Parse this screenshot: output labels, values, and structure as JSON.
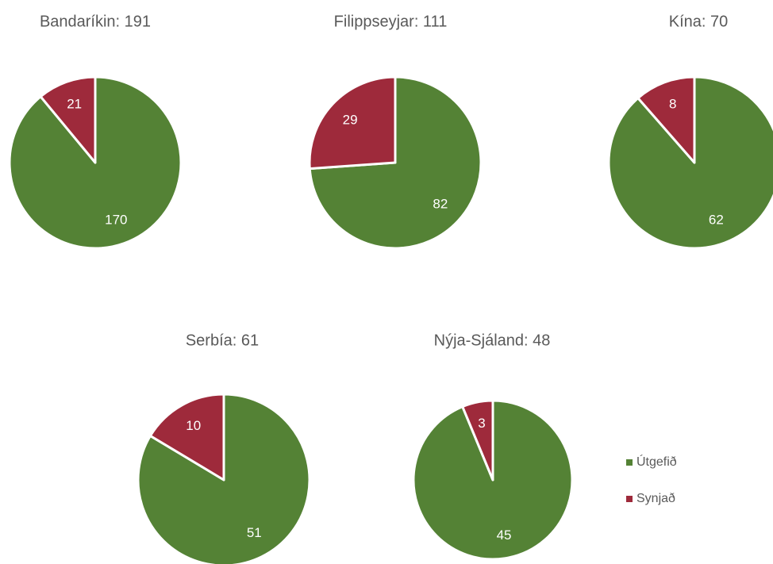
{
  "chart_data": [
    {
      "type": "pie",
      "title": "Bandaríkin: 191",
      "categories": [
        "Útgefið",
        "Synjað"
      ],
      "values": [
        170,
        21
      ],
      "colors": [
        "#548235",
        "#9e2a3b"
      ]
    },
    {
      "type": "pie",
      "title": "Filippseyjar: 111",
      "categories": [
        "Útgefið",
        "Synjað"
      ],
      "values": [
        82,
        29
      ],
      "colors": [
        "#548235",
        "#9e2a3b"
      ]
    },
    {
      "type": "pie",
      "title": "Kína: 70",
      "categories": [
        "Útgefið",
        "Synjað"
      ],
      "values": [
        62,
        8
      ],
      "colors": [
        "#548235",
        "#9e2a3b"
      ]
    },
    {
      "type": "pie",
      "title": "Serbía: 61",
      "categories": [
        "Útgefið",
        "Synjað"
      ],
      "values": [
        51,
        10
      ],
      "colors": [
        "#548235",
        "#9e2a3b"
      ]
    },
    {
      "type": "pie",
      "title": "Nýja-Sjáland: 48",
      "categories": [
        "Útgefið",
        "Synjað"
      ],
      "values": [
        45,
        3
      ],
      "colors": [
        "#548235",
        "#9e2a3b"
      ]
    }
  ]
}
